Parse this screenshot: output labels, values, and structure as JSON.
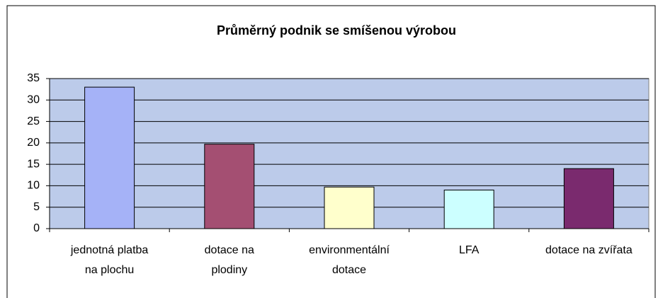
{
  "chart_data": {
    "type": "bar",
    "title": "Průměrný podnik se smíšenou výrobou",
    "categories": [
      "jednotná platba na plochu",
      "dotace na plodiny",
      "environmentální dotace",
      "LFA",
      "dotace na zvířata"
    ],
    "values": [
      33,
      19.7,
      9.7,
      9,
      14
    ],
    "colors": [
      "#a5b2f7",
      "#a44f72",
      "#ffffcc",
      "#ccffff",
      "#7a2a6e"
    ],
    "ylim": [
      0,
      35
    ],
    "yticks": [
      0,
      5,
      10,
      15,
      20,
      25,
      30,
      35
    ],
    "grid": true
  }
}
